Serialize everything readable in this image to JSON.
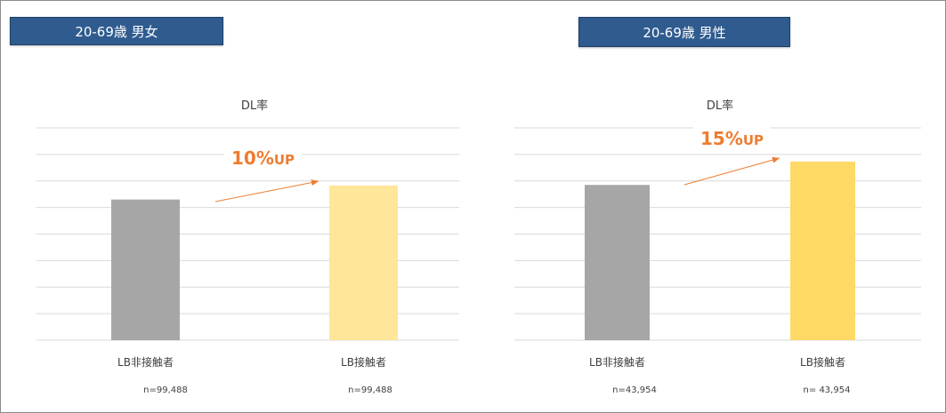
{
  "colors": {
    "banner": "#2f5b8f",
    "gray_bar": "#a6a6a6",
    "yellow_left": "#ffe699",
    "yellow_right": "#ffd966",
    "arrow": "#ed7d31",
    "grid": "#d9d9d9"
  },
  "panels": [
    {
      "banner": "20-69歳 男女",
      "up_number": "10%",
      "up_unit": "UP",
      "n_labels": [
        "n=99,488",
        "n=99,488"
      ]
    },
    {
      "banner": "20-69歳 男性",
      "up_number": "15%",
      "up_unit": "UP",
      "n_labels": [
        "n=43,954",
        "n= 43,954"
      ]
    }
  ],
  "chart_data": [
    {
      "type": "bar",
      "title": "DL率",
      "categories": [
        "LB非接触者",
        "LB接触者"
      ],
      "values": [
        5.3,
        5.83
      ],
      "ylim": [
        0,
        8
      ],
      "grid": true,
      "annotation": "10%UP"
    },
    {
      "type": "bar",
      "title": "DL率",
      "categories": [
        "LB非接触者",
        "LB接触者"
      ],
      "values": [
        5.85,
        6.73
      ],
      "ylim": [
        0,
        8
      ],
      "grid": true,
      "annotation": "15%UP"
    }
  ]
}
